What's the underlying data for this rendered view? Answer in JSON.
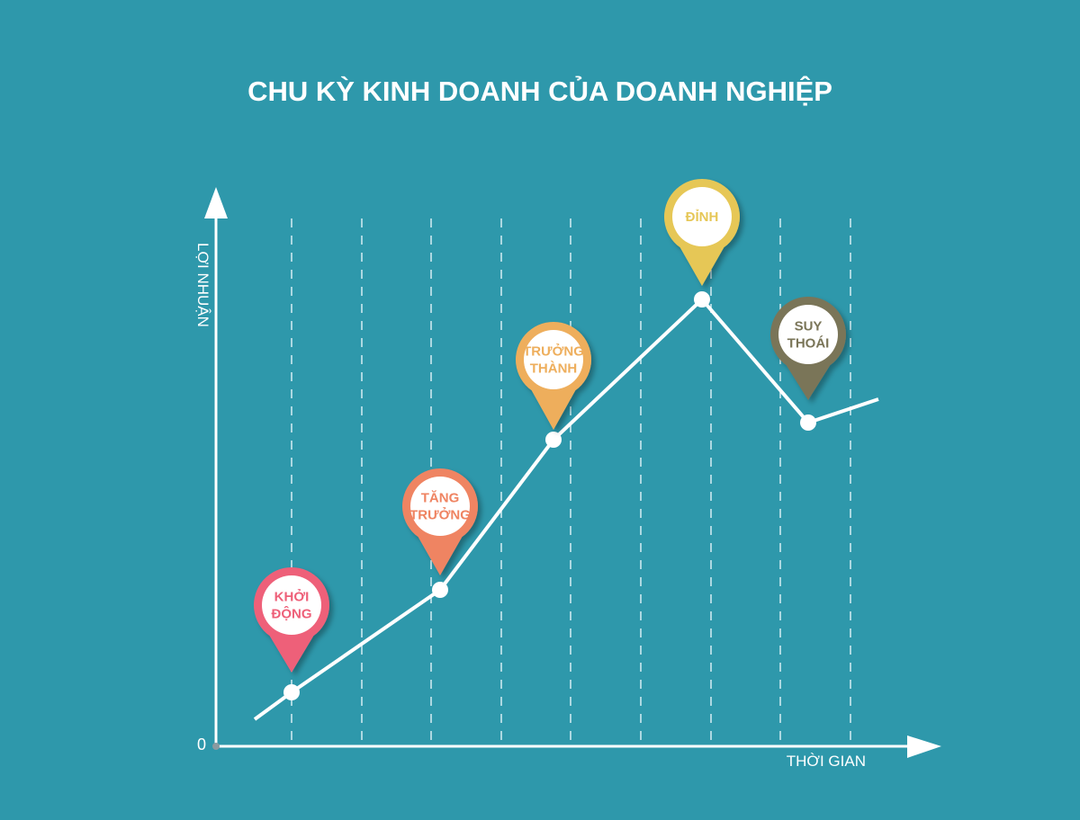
{
  "title": "CHU KỲ KINH DOANH CỦA DOANH NGHIỆP",
  "axes": {
    "y_label": "LỢI NHUẬN",
    "x_label": "THỜI GIAN",
    "origin_label": "0"
  },
  "colors": {
    "background": "#2e98ab",
    "line": "#ffffff"
  },
  "stages": [
    {
      "lines": [
        "KHỞI",
        "ĐỘNG"
      ],
      "color": "#ee6079"
    },
    {
      "lines": [
        "TĂNG",
        "TRƯỞNG"
      ],
      "color": "#ef8462"
    },
    {
      "lines": [
        "TRƯỞNG",
        "THÀNH"
      ],
      "color": "#eeae5c"
    },
    {
      "lines": [
        "ĐỈNH"
      ],
      "color": "#e6c757"
    },
    {
      "lines": [
        "SUY",
        "THOÁI"
      ],
      "color": "#7a7558"
    }
  ]
}
